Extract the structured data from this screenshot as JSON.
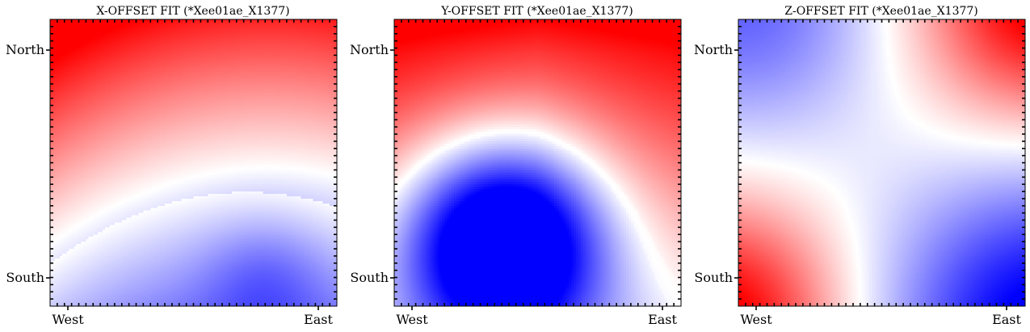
{
  "chart_data": [
    {
      "type": "heatmap",
      "title": "X-OFFSET FIT (*Xee01ae_X1377)",
      "x_ticks": [
        "West",
        "East"
      ],
      "y_ticks": [
        "North",
        "South"
      ],
      "colormap": {
        "low": "#0000ff",
        "mid": "#ffffff",
        "high": "#ff0000"
      },
      "surface": "x"
    },
    {
      "type": "heatmap",
      "title": "Y-OFFSET FIT (*Xee01ae_X1377)",
      "x_ticks": [
        "West",
        "East"
      ],
      "y_ticks": [
        "North",
        "South"
      ],
      "colormap": {
        "low": "#0000ff",
        "mid": "#ffffff",
        "high": "#ff0000"
      },
      "surface": "y"
    },
    {
      "type": "heatmap",
      "title": "Z-OFFSET FIT (*Xee01ae_X1377)",
      "x_ticks": [
        "West",
        "East"
      ],
      "y_ticks": [
        "North",
        "South"
      ],
      "colormap": {
        "low": "#0000ff",
        "mid": "#ffffff",
        "high": "#ff0000"
      },
      "surface": "z"
    }
  ]
}
